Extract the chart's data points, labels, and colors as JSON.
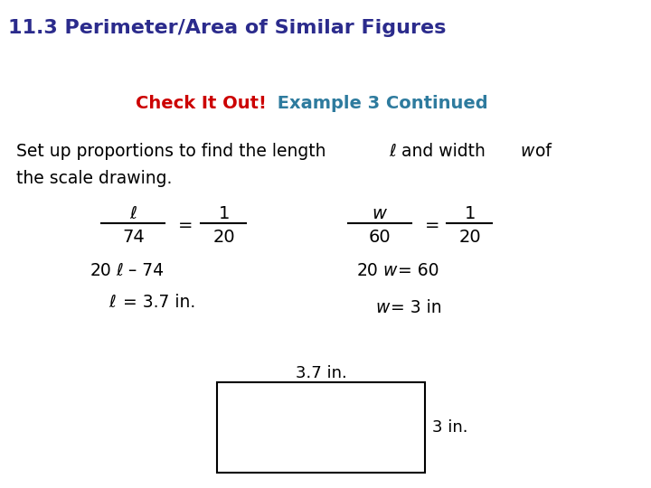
{
  "title_bar_color": "#F5C300",
  "title_text": "11.3 Perimeter/Area of Similar Figures",
  "title_text_color": "#2B2B8C",
  "subtitle_red": "Check It Out!",
  "subtitle_blue": " Example 3 Continued",
  "subtitle_red_color": "#CC0000",
  "subtitle_blue_color": "#2E7B9E",
  "body_text_color": "#000000",
  "bg_color": "#FFFFFF"
}
